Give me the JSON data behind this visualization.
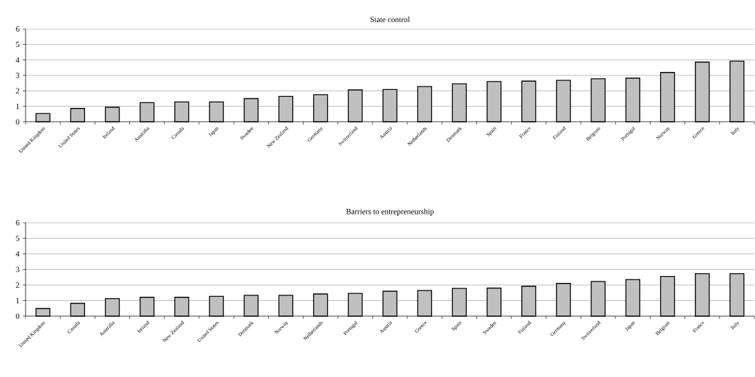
{
  "chart_data": [
    {
      "type": "bar",
      "title": "State control",
      "categories": [
        "United Kingdom",
        "United States",
        "Ireland",
        "Australia",
        "Canada",
        "Japan",
        "Sweden",
        "New Zealand",
        "Germany",
        "Switzerland",
        "Austria",
        "Netherlands",
        "Denmark",
        "Spain",
        "France",
        "Finland",
        "Belgium",
        "Portugal",
        "Norway",
        "Greece",
        "Italy"
      ],
      "values": [
        0.53,
        0.86,
        0.94,
        1.24,
        1.28,
        1.28,
        1.5,
        1.64,
        1.75,
        2.06,
        2.09,
        2.28,
        2.46,
        2.6,
        2.63,
        2.68,
        2.78,
        2.82,
        3.19,
        3.86,
        3.92
      ],
      "color": "#c0c0c0",
      "ylim": [
        0,
        6
      ],
      "yticks": [
        0,
        1,
        2,
        3,
        4,
        5,
        6
      ],
      "grid": "y"
    },
    {
      "type": "bar",
      "title": "Barriers to entrepreneurship",
      "categories": [
        "United Kingdom",
        "Canada",
        "Australia",
        "Ireland",
        "New Zealand",
        "United States",
        "Denmark",
        "Norway",
        "Netherlands",
        "Portugal",
        "Austria",
        "Greece",
        "Spain",
        "Sweden",
        "Finland",
        "Germany",
        "Switzerland",
        "Japan",
        "Belgium",
        "France",
        "Italy"
      ],
      "values": [
        0.49,
        0.82,
        1.13,
        1.21,
        1.21,
        1.27,
        1.34,
        1.34,
        1.42,
        1.46,
        1.6,
        1.65,
        1.78,
        1.8,
        1.92,
        2.1,
        2.23,
        2.35,
        2.55,
        2.73,
        2.73
      ],
      "color": "#c0c0c0",
      "ylim": [
        0,
        6
      ],
      "yticks": [
        0,
        1,
        2,
        3,
        4,
        5,
        6
      ],
      "grid": "y"
    }
  ]
}
